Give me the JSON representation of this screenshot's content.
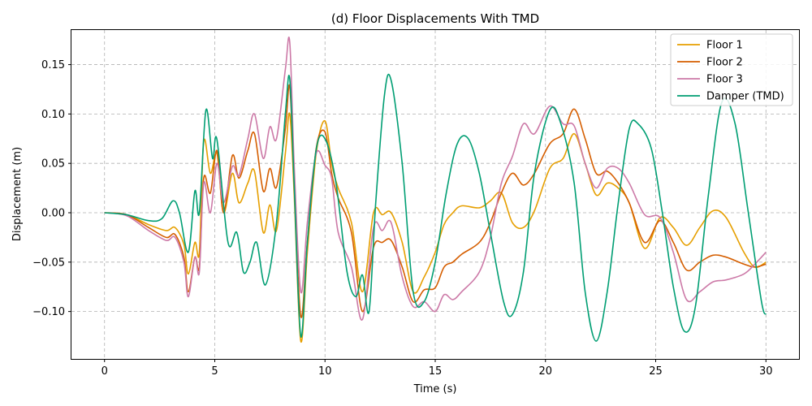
{
  "chart_data": {
    "type": "line",
    "title": "(d) Floor Displacements With TMD",
    "xlabel": "Time (s)",
    "ylabel": "Displacement (m)",
    "xlim": [
      -1.5,
      31.5
    ],
    "ylim": [
      -0.148,
      0.185
    ],
    "xticks": [
      0,
      5,
      10,
      15,
      20,
      25,
      30
    ],
    "xtick_labels": [
      "0",
      "5",
      "10",
      "15",
      "20",
      "25",
      "30"
    ],
    "yticks": [
      -0.1,
      -0.05,
      0.0,
      0.05,
      0.1,
      0.15
    ],
    "ytick_labels": [
      "−0.10",
      "−0.05",
      "0.00",
      "0.05",
      "0.10",
      "0.15"
    ],
    "grid": true,
    "legend_position": "upper right",
    "series": [
      {
        "name": "Floor 1",
        "color": "#E69F00",
        "points": [
          [
            0,
            0
          ],
          [
            1,
            -0.002
          ],
          [
            2,
            -0.012
          ],
          [
            2.8,
            -0.018
          ],
          [
            3.2,
            -0.015
          ],
          [
            3.6,
            -0.032
          ],
          [
            3.8,
            -0.062
          ],
          [
            4.1,
            -0.03
          ],
          [
            4.3,
            -0.04
          ],
          [
            4.5,
            0.072
          ],
          [
            4.8,
            0.04
          ],
          [
            5.1,
            0.06
          ],
          [
            5.4,
            0.0
          ],
          [
            5.8,
            0.04
          ],
          [
            6.1,
            0.01
          ],
          [
            6.5,
            0.03
          ],
          [
            6.8,
            0.042
          ],
          [
            7.2,
            -0.02
          ],
          [
            7.5,
            0.008
          ],
          [
            7.8,
            -0.018
          ],
          [
            8.2,
            0.06
          ],
          [
            8.4,
            0.1
          ],
          [
            8.6,
            0.02
          ],
          [
            8.9,
            -0.13
          ],
          [
            9.2,
            -0.04
          ],
          [
            9.6,
            0.06
          ],
          [
            10,
            0.093
          ],
          [
            10.3,
            0.05
          ],
          [
            10.6,
            0.025
          ],
          [
            11.2,
            -0.01
          ],
          [
            11.7,
            -0.08
          ],
          [
            12.2,
            0.0
          ],
          [
            12.6,
            -0.002
          ],
          [
            13,
            0.0
          ],
          [
            13.5,
            -0.03
          ],
          [
            14,
            -0.08
          ],
          [
            14.5,
            -0.065
          ],
          [
            15,
            -0.04
          ],
          [
            15.4,
            -0.012
          ],
          [
            15.8,
            0.0
          ],
          [
            16.2,
            0.007
          ],
          [
            17,
            0.005
          ],
          [
            17.5,
            0.012
          ],
          [
            18,
            0.02
          ],
          [
            18.5,
            -0.01
          ],
          [
            19,
            -0.015
          ],
          [
            19.5,
            0.002
          ],
          [
            20.2,
            0.045
          ],
          [
            20.8,
            0.055
          ],
          [
            21.3,
            0.08
          ],
          [
            21.8,
            0.05
          ],
          [
            22.3,
            0.018
          ],
          [
            22.8,
            0.03
          ],
          [
            23.3,
            0.025
          ],
          [
            23.8,
            0.01
          ],
          [
            24.5,
            -0.036
          ],
          [
            25.2,
            -0.005
          ],
          [
            25.8,
            -0.015
          ],
          [
            26.4,
            -0.033
          ],
          [
            27,
            -0.015
          ],
          [
            27.6,
            0.002
          ],
          [
            28.2,
            -0.005
          ],
          [
            29,
            -0.04
          ],
          [
            29.5,
            -0.055
          ],
          [
            30,
            -0.05
          ]
        ]
      },
      {
        "name": "Floor 2",
        "color": "#D55E00",
        "points": [
          [
            0,
            0
          ],
          [
            1,
            -0.002
          ],
          [
            2,
            -0.015
          ],
          [
            2.8,
            -0.025
          ],
          [
            3.2,
            -0.022
          ],
          [
            3.6,
            -0.045
          ],
          [
            3.8,
            -0.08
          ],
          [
            4.1,
            -0.045
          ],
          [
            4.3,
            -0.055
          ],
          [
            4.5,
            0.035
          ],
          [
            4.8,
            0.02
          ],
          [
            5.1,
            0.063
          ],
          [
            5.4,
            0.0
          ],
          [
            5.8,
            0.058
          ],
          [
            6.1,
            0.035
          ],
          [
            6.5,
            0.063
          ],
          [
            6.8,
            0.08
          ],
          [
            7.2,
            0.022
          ],
          [
            7.5,
            0.045
          ],
          [
            7.8,
            0.026
          ],
          [
            8.2,
            0.085
          ],
          [
            8.4,
            0.128
          ],
          [
            8.6,
            0.03
          ],
          [
            8.9,
            -0.105
          ],
          [
            9.2,
            -0.03
          ],
          [
            9.6,
            0.065
          ],
          [
            10,
            0.082
          ],
          [
            10.3,
            0.04
          ],
          [
            10.6,
            0.015
          ],
          [
            11.2,
            -0.02
          ],
          [
            11.7,
            -0.1
          ],
          [
            12.2,
            -0.035
          ],
          [
            12.6,
            -0.03
          ],
          [
            13,
            -0.028
          ],
          [
            13.5,
            -0.055
          ],
          [
            14,
            -0.09
          ],
          [
            14.5,
            -0.078
          ],
          [
            15,
            -0.076
          ],
          [
            15.4,
            -0.055
          ],
          [
            15.8,
            -0.05
          ],
          [
            16.2,
            -0.042
          ],
          [
            17,
            -0.03
          ],
          [
            17.5,
            -0.01
          ],
          [
            18,
            0.02
          ],
          [
            18.5,
            0.04
          ],
          [
            19,
            0.028
          ],
          [
            19.5,
            0.04
          ],
          [
            20.2,
            0.07
          ],
          [
            20.8,
            0.08
          ],
          [
            21.3,
            0.105
          ],
          [
            21.8,
            0.075
          ],
          [
            22.3,
            0.04
          ],
          [
            22.8,
            0.042
          ],
          [
            23.3,
            0.03
          ],
          [
            23.8,
            0.01
          ],
          [
            24.5,
            -0.03
          ],
          [
            25.2,
            -0.008
          ],
          [
            25.8,
            -0.03
          ],
          [
            26.4,
            -0.058
          ],
          [
            27,
            -0.05
          ],
          [
            27.6,
            -0.043
          ],
          [
            28.2,
            -0.045
          ],
          [
            29,
            -0.052
          ],
          [
            29.5,
            -0.055
          ],
          [
            30,
            -0.052
          ]
        ]
      },
      {
        "name": "Floor 3",
        "color": "#CC79A7",
        "points": [
          [
            0,
            0
          ],
          [
            1,
            -0.003
          ],
          [
            2,
            -0.018
          ],
          [
            2.8,
            -0.028
          ],
          [
            3.2,
            -0.025
          ],
          [
            3.6,
            -0.05
          ],
          [
            3.8,
            -0.085
          ],
          [
            4.1,
            -0.045
          ],
          [
            4.3,
            -0.06
          ],
          [
            4.5,
            0.03
          ],
          [
            4.8,
            0.0
          ],
          [
            5.1,
            0.05
          ],
          [
            5.4,
            0.01
          ],
          [
            5.8,
            0.047
          ],
          [
            6.1,
            0.038
          ],
          [
            6.5,
            0.075
          ],
          [
            6.8,
            0.1
          ],
          [
            7.2,
            0.055
          ],
          [
            7.5,
            0.087
          ],
          [
            7.8,
            0.075
          ],
          [
            8.2,
            0.145
          ],
          [
            8.4,
            0.173
          ],
          [
            8.6,
            0.05
          ],
          [
            8.9,
            -0.08
          ],
          [
            9.2,
            -0.01
          ],
          [
            9.6,
            0.06
          ],
          [
            10,
            0.048
          ],
          [
            10.3,
            0.035
          ],
          [
            10.6,
            -0.02
          ],
          [
            11.2,
            -0.055
          ],
          [
            11.7,
            -0.108
          ],
          [
            12.2,
            -0.015
          ],
          [
            12.6,
            -0.018
          ],
          [
            13,
            -0.01
          ],
          [
            13.5,
            -0.065
          ],
          [
            14,
            -0.095
          ],
          [
            14.5,
            -0.09
          ],
          [
            15,
            -0.1
          ],
          [
            15.4,
            -0.083
          ],
          [
            15.8,
            -0.088
          ],
          [
            16.2,
            -0.08
          ],
          [
            17,
            -0.06
          ],
          [
            17.5,
            -0.025
          ],
          [
            18,
            0.03
          ],
          [
            18.5,
            0.057
          ],
          [
            19,
            0.09
          ],
          [
            19.5,
            0.08
          ],
          [
            20.2,
            0.108
          ],
          [
            20.8,
            0.09
          ],
          [
            21.3,
            0.088
          ],
          [
            21.8,
            0.05
          ],
          [
            22.3,
            0.025
          ],
          [
            22.8,
            0.045
          ],
          [
            23.3,
            0.045
          ],
          [
            23.8,
            0.03
          ],
          [
            24.5,
            -0.002
          ],
          [
            25.2,
            -0.005
          ],
          [
            25.8,
            -0.04
          ],
          [
            26.4,
            -0.088
          ],
          [
            27,
            -0.08
          ],
          [
            27.6,
            -0.07
          ],
          [
            28.2,
            -0.068
          ],
          [
            29,
            -0.062
          ],
          [
            29.5,
            -0.052
          ],
          [
            30,
            -0.04
          ]
        ]
      },
      {
        "name": "Damper (TMD)",
        "color": "#009E73",
        "points": [
          [
            0,
            0
          ],
          [
            1,
            -0.002
          ],
          [
            2,
            -0.008
          ],
          [
            2.6,
            -0.006
          ],
          [
            3.1,
            0.012
          ],
          [
            3.4,
            0.0
          ],
          [
            3.8,
            -0.04
          ],
          [
            4.1,
            0.022
          ],
          [
            4.3,
            0.0
          ],
          [
            4.6,
            0.104
          ],
          [
            4.9,
            0.055
          ],
          [
            5.1,
            0.074
          ],
          [
            5.6,
            -0.03
          ],
          [
            6.0,
            -0.02
          ],
          [
            6.3,
            -0.06
          ],
          [
            6.6,
            -0.05
          ],
          [
            6.9,
            -0.03
          ],
          [
            7.3,
            -0.073
          ],
          [
            7.8,
            -0.01
          ],
          [
            8.2,
            0.1
          ],
          [
            8.4,
            0.136
          ],
          [
            8.6,
            0.03
          ],
          [
            8.9,
            -0.125
          ],
          [
            9.2,
            -0.03
          ],
          [
            9.6,
            0.064
          ],
          [
            10,
            0.075
          ],
          [
            10.5,
            0.03
          ],
          [
            11,
            -0.06
          ],
          [
            11.4,
            -0.085
          ],
          [
            11.7,
            -0.063
          ],
          [
            12.0,
            -0.1
          ],
          [
            12.3,
            0.01
          ],
          [
            12.7,
            0.12
          ],
          [
            13,
            0.134
          ],
          [
            13.5,
            0.05
          ],
          [
            14,
            -0.08
          ],
          [
            14.5,
            -0.09
          ],
          [
            15,
            -0.05
          ],
          [
            15.5,
            0.02
          ],
          [
            16,
            0.07
          ],
          [
            16.5,
            0.075
          ],
          [
            17,
            0.04
          ],
          [
            17.5,
            -0.02
          ],
          [
            18.1,
            -0.09
          ],
          [
            18.5,
            -0.103
          ],
          [
            19,
            -0.06
          ],
          [
            19.5,
            0.04
          ],
          [
            20.2,
            0.104
          ],
          [
            20.7,
            0.09
          ],
          [
            21.3,
            0.03
          ],
          [
            21.8,
            -0.08
          ],
          [
            22.3,
            -0.13
          ],
          [
            22.8,
            -0.08
          ],
          [
            23.3,
            0.01
          ],
          [
            23.8,
            0.085
          ],
          [
            24.2,
            0.09
          ],
          [
            24.8,
            0.065
          ],
          [
            25.3,
            0.0
          ],
          [
            25.8,
            -0.075
          ],
          [
            26.3,
            -0.12
          ],
          [
            26.8,
            -0.095
          ],
          [
            27.4,
            0.02
          ],
          [
            28,
            0.112
          ],
          [
            28.6,
            0.09
          ],
          [
            29.2,
            0.0
          ],
          [
            29.8,
            -0.09
          ],
          [
            30,
            -0.103
          ]
        ]
      }
    ]
  }
}
